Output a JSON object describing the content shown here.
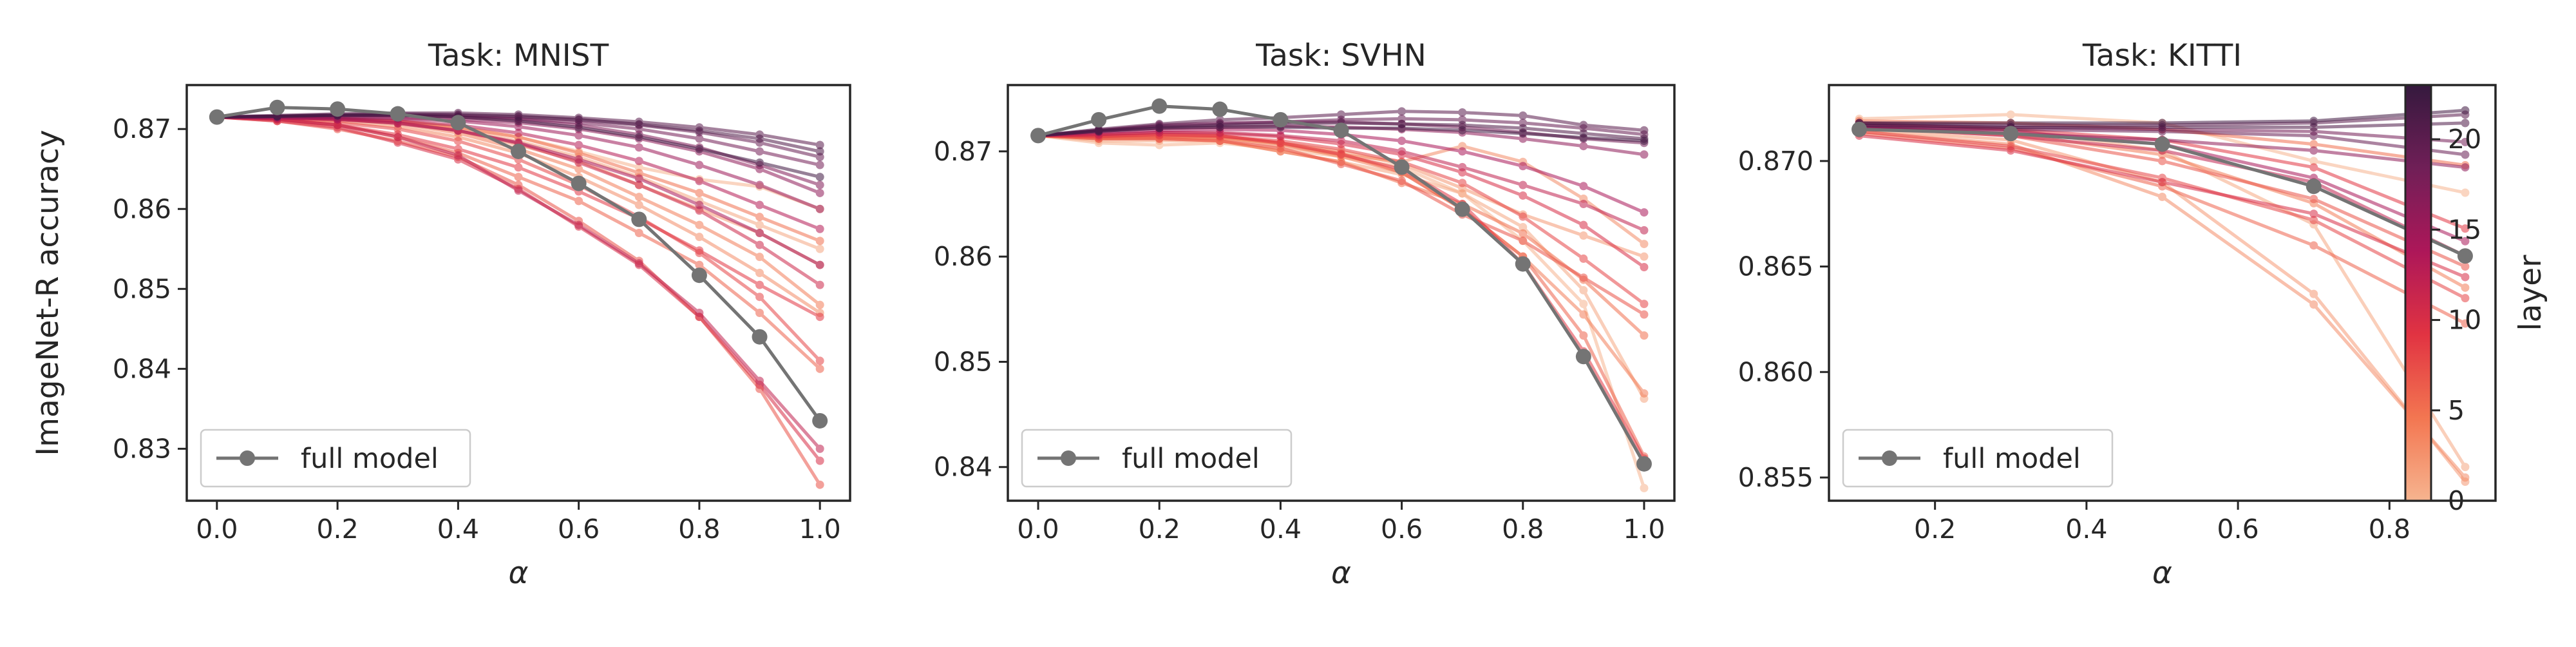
{
  "chart_data": [
    {
      "type": "line",
      "title": "Task: MNIST",
      "xlabel": "α",
      "ylabel": "ImageNet-R accuracy",
      "xlim": [
        -0.05,
        1.05
      ],
      "ylim": [
        0.8235,
        0.8755
      ],
      "xticks": [
        "0.0",
        "0.2",
        "0.4",
        "0.6",
        "0.8",
        "1.0"
      ],
      "yticks": [
        "0.83",
        "0.84",
        "0.85",
        "0.86",
        "0.87"
      ],
      "legend": {
        "label": "full model",
        "placement": "bottom-left"
      },
      "x": [
        0.0,
        0.1,
        0.2,
        0.3,
        0.4,
        0.5,
        0.6,
        0.7,
        0.8,
        0.9,
        1.0
      ],
      "full_model": [
        0.8715,
        0.8727,
        0.8725,
        0.8719,
        0.8708,
        0.8672,
        0.8632,
        0.8587,
        0.8517,
        0.844,
        0.8335
      ],
      "layers": [
        {
          "layer": 0,
          "values": [
            0.8715,
            0.8714,
            0.8713,
            0.871,
            0.8703,
            0.869,
            0.8672,
            0.8652,
            0.8637,
            0.8628,
            0.86
          ]
        },
        {
          "layer": 1,
          "values": [
            0.8715,
            0.8714,
            0.8713,
            0.871,
            0.87,
            0.8685,
            0.8665,
            0.864,
            0.861,
            0.858,
            0.855
          ]
        },
        {
          "layer": 2,
          "values": [
            0.8715,
            0.8714,
            0.8712,
            0.8708,
            0.8698,
            0.868,
            0.866,
            0.863,
            0.86,
            0.857,
            0.853
          ]
        },
        {
          "layer": 3,
          "values": [
            0.8715,
            0.8713,
            0.871,
            0.8703,
            0.869,
            0.867,
            0.864,
            0.8605,
            0.8565,
            0.852,
            0.847
          ]
        },
        {
          "layer": 4,
          "values": [
            0.8715,
            0.8714,
            0.8712,
            0.8707,
            0.8695,
            0.8675,
            0.865,
            0.8615,
            0.858,
            0.854,
            0.848
          ]
        },
        {
          "layer": 5,
          "values": [
            0.8715,
            0.8714,
            0.8713,
            0.871,
            0.8702,
            0.869,
            0.867,
            0.8645,
            0.862,
            0.859,
            0.856
          ]
        },
        {
          "layer": 6,
          "values": [
            0.8715,
            0.8712,
            0.8705,
            0.869,
            0.867,
            0.864,
            0.861,
            0.857,
            0.853,
            0.847,
            0.84
          ]
        },
        {
          "layer": 7,
          "values": [
            0.8715,
            0.871,
            0.87,
            0.8685,
            0.8665,
            0.863,
            0.8585,
            0.8535,
            0.8465,
            0.8375,
            0.8255
          ]
        },
        {
          "layer": 8,
          "values": [
            0.8715,
            0.8713,
            0.8708,
            0.87,
            0.8685,
            0.8662,
            0.863,
            0.859,
            0.8545,
            0.849,
            0.841
          ]
        },
        {
          "layer": 9,
          "values": [
            0.8715,
            0.8712,
            0.8705,
            0.8693,
            0.8675,
            0.8652,
            0.8622,
            0.8588,
            0.8548,
            0.8505,
            0.8465
          ]
        },
        {
          "layer": 10,
          "values": [
            0.8715,
            0.871,
            0.8702,
            0.8683,
            0.8662,
            0.8625,
            0.8578,
            0.853,
            0.8465,
            0.838,
            0.8285
          ]
        },
        {
          "layer": 11,
          "values": [
            0.8715,
            0.8714,
            0.8712,
            0.8708,
            0.8698,
            0.8682,
            0.8658,
            0.863,
            0.8598,
            0.8555,
            0.8505
          ]
        },
        {
          "layer": 12,
          "values": [
            0.8715,
            0.8712,
            0.8705,
            0.869,
            0.8667,
            0.8623,
            0.858,
            0.8532,
            0.847,
            0.8385,
            0.83
          ]
        },
        {
          "layer": 13,
          "values": [
            0.8715,
            0.8714,
            0.8713,
            0.871,
            0.8705,
            0.8695,
            0.868,
            0.866,
            0.8635,
            0.8605,
            0.8575
          ]
        },
        {
          "layer": 14,
          "values": [
            0.8715,
            0.8714,
            0.8712,
            0.8707,
            0.8698,
            0.8683,
            0.8662,
            0.8638,
            0.8605,
            0.857,
            0.853
          ]
        },
        {
          "layer": 15,
          "values": [
            0.8715,
            0.8715,
            0.8714,
            0.8713,
            0.871,
            0.8703,
            0.8692,
            0.8677,
            0.8655,
            0.863,
            0.86
          ]
        },
        {
          "layer": 16,
          "values": [
            0.8715,
            0.8715,
            0.8715,
            0.8714,
            0.8712,
            0.8708,
            0.87,
            0.8688,
            0.8672,
            0.865,
            0.862
          ]
        },
        {
          "layer": 17,
          "values": [
            0.8715,
            0.8716,
            0.8717,
            0.8717,
            0.8715,
            0.8712,
            0.8705,
            0.8693,
            0.8677,
            0.8655,
            0.863
          ]
        },
        {
          "layer": 18,
          "values": [
            0.8715,
            0.8716,
            0.8717,
            0.8717,
            0.8716,
            0.8713,
            0.8708,
            0.87,
            0.8688,
            0.8672,
            0.8655
          ]
        },
        {
          "layer": 19,
          "values": [
            0.8715,
            0.8716,
            0.8717,
            0.8718,
            0.8717,
            0.8715,
            0.8711,
            0.8705,
            0.8696,
            0.8683,
            0.8665
          ]
        },
        {
          "layer": 20,
          "values": [
            0.8715,
            0.8717,
            0.8719,
            0.872,
            0.872,
            0.8718,
            0.8714,
            0.8709,
            0.8702,
            0.8693,
            0.868
          ]
        },
        {
          "layer": 21,
          "values": [
            0.8715,
            0.8716,
            0.8718,
            0.8719,
            0.8718,
            0.8716,
            0.8712,
            0.8706,
            0.8698,
            0.8688,
            0.8672
          ]
        },
        {
          "layer": 22,
          "values": [
            0.8715,
            0.8716,
            0.8717,
            0.8717,
            0.8715,
            0.871,
            0.8702,
            0.869,
            0.8675,
            0.8658,
            0.864
          ]
        }
      ]
    },
    {
      "type": "line",
      "title": "Task: SVHN",
      "xlabel": "α",
      "ylabel": "",
      "xlim": [
        -0.05,
        1.05
      ],
      "ylim": [
        0.8368,
        0.8763
      ],
      "xticks": [
        "0.0",
        "0.2",
        "0.4",
        "0.6",
        "0.8",
        "1.0"
      ],
      "yticks": [
        "0.84",
        "0.85",
        "0.86",
        "0.87"
      ],
      "legend": {
        "label": "full model",
        "placement": "bottom-left"
      },
      "x": [
        0.0,
        0.1,
        0.2,
        0.3,
        0.4,
        0.5,
        0.6,
        0.7,
        0.8,
        0.9,
        1.0
      ],
      "full_model": [
        0.8715,
        0.873,
        0.8743,
        0.874,
        0.873,
        0.872,
        0.8685,
        0.8645,
        0.8593,
        0.8505,
        0.8403
      ],
      "layers": [
        {
          "layer": 0,
          "values": [
            0.8715,
            0.8708,
            0.8706,
            0.8708,
            0.8702,
            0.8695,
            0.8685,
            0.866,
            0.8615,
            0.8555,
            0.838
          ]
        },
        {
          "layer": 1,
          "values": [
            0.8715,
            0.871,
            0.871,
            0.871,
            0.87,
            0.869,
            0.8678,
            0.866,
            0.8628,
            0.8568,
            0.8465
          ]
        },
        {
          "layer": 2,
          "values": [
            0.8715,
            0.8712,
            0.8713,
            0.8713,
            0.8708,
            0.87,
            0.8688,
            0.8665,
            0.864,
            0.862,
            0.86
          ]
        },
        {
          "layer": 3,
          "values": [
            0.8715,
            0.8713,
            0.8713,
            0.8712,
            0.8705,
            0.8697,
            0.869,
            0.8705,
            0.869,
            0.8655,
            0.8612
          ]
        },
        {
          "layer": 4,
          "values": [
            0.8715,
            0.8713,
            0.8714,
            0.8713,
            0.8707,
            0.8695,
            0.868,
            0.8645,
            0.86,
            0.8545,
            0.847
          ]
        },
        {
          "layer": 5,
          "values": [
            0.8715,
            0.8712,
            0.8712,
            0.871,
            0.87,
            0.869,
            0.867,
            0.865,
            0.8622,
            0.8578,
            0.8525
          ]
        },
        {
          "layer": 6,
          "values": [
            0.8715,
            0.8715,
            0.8716,
            0.8715,
            0.8708,
            0.8698,
            0.868,
            0.8645,
            0.86,
            0.8525,
            0.841
          ]
        },
        {
          "layer": 7,
          "values": [
            0.8715,
            0.8712,
            0.8712,
            0.871,
            0.8703,
            0.8688,
            0.8672,
            0.864,
            0.8615,
            0.858,
            0.8545
          ]
        },
        {
          "layer": 8,
          "values": [
            0.8715,
            0.8715,
            0.8715,
            0.8714,
            0.871,
            0.8702,
            0.869,
            0.867,
            0.8638,
            0.8598,
            0.8555
          ]
        },
        {
          "layer": 9,
          "values": [
            0.8715,
            0.8714,
            0.8716,
            0.8715,
            0.8708,
            0.8697,
            0.8683,
            0.865,
            0.8593,
            0.851,
            0.8408
          ]
        },
        {
          "layer": 10,
          "values": [
            0.8715,
            0.8716,
            0.8718,
            0.8717,
            0.8714,
            0.8707,
            0.8697,
            0.868,
            0.8658,
            0.863,
            0.859
          ]
        },
        {
          "layer": 12,
          "values": [
            0.8715,
            0.8716,
            0.8718,
            0.8718,
            0.8715,
            0.871,
            0.87,
            0.8685,
            0.8668,
            0.865,
            0.8625
          ]
        },
        {
          "layer": 14,
          "values": [
            0.8715,
            0.8718,
            0.872,
            0.8721,
            0.872,
            0.8716,
            0.871,
            0.87,
            0.8686,
            0.8667,
            0.8642
          ]
        },
        {
          "layer": 16,
          "values": [
            0.8715,
            0.8719,
            0.8722,
            0.8723,
            0.8724,
            0.8723,
            0.8721,
            0.8718,
            0.8712,
            0.8705,
            0.8697
          ]
        },
        {
          "layer": 18,
          "values": [
            0.8715,
            0.872,
            0.8725,
            0.8727,
            0.8728,
            0.8728,
            0.8726,
            0.8723,
            0.8718,
            0.8712,
            0.8708
          ]
        },
        {
          "layer": 19,
          "values": [
            0.8715,
            0.872,
            0.8724,
            0.8726,
            0.8728,
            0.873,
            0.8731,
            0.873,
            0.8727,
            0.8722,
            0.8716
          ]
        },
        {
          "layer": 20,
          "values": [
            0.8715,
            0.8721,
            0.8726,
            0.873,
            0.8732,
            0.8735,
            0.8738,
            0.8737,
            0.8734,
            0.8725,
            0.872
          ]
        },
        {
          "layer": 21,
          "values": [
            0.8715,
            0.872,
            0.8723,
            0.8725,
            0.8726,
            0.8727,
            0.8726,
            0.8725,
            0.8722,
            0.8717,
            0.8712
          ]
        },
        {
          "layer": 22,
          "values": [
            0.8715,
            0.8719,
            0.8722,
            0.8723,
            0.8723,
            0.8722,
            0.8722,
            0.872,
            0.8717,
            0.8713,
            0.871
          ]
        }
      ]
    },
    {
      "type": "line",
      "title": "Task: KITTI",
      "xlabel": "α",
      "ylabel": "",
      "xlim": [
        0.06,
        0.94
      ],
      "ylim": [
        0.8539,
        0.8736
      ],
      "xticks": [
        "0.2",
        "0.4",
        "0.6",
        "0.8"
      ],
      "yticks": [
        "0.855",
        "0.860",
        "0.865",
        "0.870"
      ],
      "legend": {
        "label": "full model",
        "placement": "bottom-left"
      },
      "x": [
        0.1,
        0.3,
        0.5,
        0.7,
        0.9
      ],
      "full_model": [
        0.8715,
        0.8713,
        0.8708,
        0.8688,
        0.8655
      ],
      "layers": [
        {
          "layer": 0,
          "values": [
            0.872,
            0.8722,
            0.8718,
            0.87,
            0.8685
          ]
        },
        {
          "layer": 1,
          "values": [
            0.8717,
            0.8715,
            0.8705,
            0.867,
            0.8555
          ]
        },
        {
          "layer": 2,
          "values": [
            0.8715,
            0.871,
            0.869,
            0.8637,
            0.8548
          ]
        },
        {
          "layer": 3,
          "values": [
            0.8714,
            0.8708,
            0.8683,
            0.8632,
            0.855
          ]
        },
        {
          "layer": 4,
          "values": [
            0.8716,
            0.8713,
            0.8703,
            0.868,
            0.864
          ]
        },
        {
          "layer": 5,
          "values": [
            0.8719,
            0.8718,
            0.8715,
            0.8708,
            0.8698
          ]
        },
        {
          "layer": 6,
          "values": [
            0.8713,
            0.8706,
            0.8688,
            0.866,
            0.8623
          ]
        },
        {
          "layer": 7,
          "values": [
            0.8716,
            0.8712,
            0.87,
            0.8682,
            0.865
          ]
        },
        {
          "layer": 8,
          "values": [
            0.8714,
            0.8707,
            0.8692,
            0.8672,
            0.8635
          ]
        },
        {
          "layer": 9,
          "values": [
            0.8718,
            0.8715,
            0.871,
            0.8697,
            0.8668
          ]
        },
        {
          "layer": 10,
          "values": [
            0.8712,
            0.8705,
            0.869,
            0.8675,
            0.8645
          ]
        },
        {
          "layer": 12,
          "values": [
            0.8716,
            0.8712,
            0.8705,
            0.869,
            0.8655
          ]
        },
        {
          "layer": 14,
          "values": [
            0.8717,
            0.8714,
            0.8708,
            0.8692,
            0.8662
          ]
        },
        {
          "layer": 16,
          "values": [
            0.8716,
            0.8713,
            0.871,
            0.8705,
            0.8697
          ]
        },
        {
          "layer": 18,
          "values": [
            0.8717,
            0.8716,
            0.8715,
            0.8714,
            0.8709
          ]
        },
        {
          "layer": 19,
          "values": [
            0.8716,
            0.8715,
            0.8714,
            0.8712,
            0.8703
          ]
        },
        {
          "layer": 20,
          "values": [
            0.8718,
            0.8717,
            0.8717,
            0.8718,
            0.8722
          ]
        },
        {
          "layer": 21,
          "values": [
            0.8717,
            0.8716,
            0.8716,
            0.8716,
            0.8718
          ]
        },
        {
          "layer": 22,
          "values": [
            0.8718,
            0.8718,
            0.8718,
            0.8719,
            0.8724
          ]
        }
      ]
    }
  ],
  "colorbar": {
    "label": "layer",
    "min": 0,
    "max": 23,
    "ticks": [
      "0",
      "5",
      "10",
      "15",
      "20"
    ]
  },
  "colors": {
    "full_model": "#747474",
    "colormap": [
      "#f6b48f",
      "#f37651",
      "#e13342",
      "#ad1759",
      "#701f57",
      "#35193e"
    ]
  }
}
